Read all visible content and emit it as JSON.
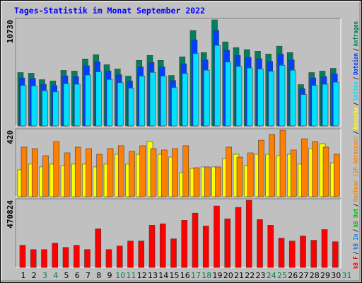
{
  "chart_data": [
    {
      "type": "bar",
      "title": "Tages-Statistik im Monat September 2022",
      "title_color": "#0000ff",
      "ylim": [
        0,
        10730
      ],
      "yticks": [
        10730
      ],
      "series": [
        {
          "color": "#00805c",
          "values": [
            5400,
            5330,
            4680,
            4540,
            5620,
            5550,
            6770,
            7200,
            6190,
            5760,
            5040,
            6630,
            7130,
            6630,
            5110,
            6990,
            9650,
            7420,
            10730,
            8500,
            7920,
            7710,
            7560,
            7270,
            8070,
            7420,
            4180,
            5400,
            5550,
            5830,
            null
          ]
        },
        {
          "color": "#0040ff",
          "values": [
            4860,
            4800,
            4210,
            4090,
            5060,
            5000,
            6090,
            6480,
            5570,
            5180,
            4540,
            5970,
            6420,
            5970,
            4600,
            6290,
            8690,
            6680,
            9660,
            7650,
            7130,
            6940,
            6800,
            6540,
            7260,
            6680,
            3760,
            4860,
            5000,
            5250,
            null
          ]
        },
        {
          "color": "#00e0ff",
          "values": [
            4100,
            4050,
            3560,
            3450,
            4270,
            4220,
            5150,
            5470,
            4700,
            4380,
            3830,
            5040,
            5420,
            5040,
            3880,
            5310,
            7330,
            5640,
            8150,
            6460,
            6020,
            5860,
            5750,
            5530,
            6130,
            5640,
            3180,
            4100,
            4220,
            4430,
            null
          ]
        }
      ]
    },
    {
      "type": "bar",
      "ylim": [
        0,
        420
      ],
      "yticks": [
        420
      ],
      "series": [
        {
          "color": "#ffff00",
          "values": [
            170,
            206,
            188,
            206,
            197,
            206,
            206,
            188,
            206,
            268,
            206,
            268,
            348,
            268,
            250,
            152,
            179,
            188,
            188,
            241,
            268,
            197,
            268,
            268,
            259,
            268,
            206,
            304,
            335,
            214,
            null
          ]
        },
        {
          "color": "#ff8000",
          "values": [
            313,
            304,
            259,
            348,
            277,
            313,
            304,
            268,
            304,
            322,
            286,
            322,
            304,
            295,
            304,
            322,
            183,
            188,
            188,
            313,
            250,
            277,
            357,
            393,
            420,
            295,
            366,
            348,
            313,
            268,
            null
          ]
        }
      ]
    },
    {
      "type": "bar",
      "ylim": [
        0,
        470824
      ],
      "yticks": [
        470824
      ],
      "categories": [
        "1",
        "2",
        "3",
        "4",
        "5",
        "6",
        "7",
        "8",
        "9",
        "10",
        "11",
        "12",
        "13",
        "14",
        "15",
        "16",
        "17",
        "18",
        "19",
        "20",
        "21",
        "22",
        "23",
        "24",
        "25",
        "26",
        "27",
        "28",
        "29",
        "30",
        "31"
      ],
      "weekend_color": "#008040",
      "weekends": [
        2,
        3,
        9,
        10,
        16,
        17,
        23,
        24,
        30
      ],
      "series": [
        {
          "color": "#ff0000",
          "values": [
            155270,
            125220,
            125220,
            170300,
            140250,
            155270,
            125220,
            270480,
            125220,
            150260,
            185330,
            185330,
            295520,
            305540,
            200350,
            330580,
            380670,
            290510,
            430760,
            340600,
            420740,
            470824,
            335590,
            295520,
            205360,
            185330,
            220390,
            190330,
            265470,
            180320,
            null
          ]
        }
      ]
    }
  ],
  "legend_separator": "/",
  "legend": [
    {
      "name": "kB F",
      "color": "#ff0000"
    },
    {
      "name": "kB In",
      "color": "#0080ff"
    },
    {
      "name": "kB Out",
      "color": "#00c000"
    },
    {
      "name": "Rechner (IP-Adressen)",
      "color": "#ff8000"
    },
    {
      "name": "Besuche",
      "color": "#ffff00"
    },
    {
      "name": "Seiten",
      "color": "#00e0ff"
    },
    {
      "name": "Dateien",
      "color": "#0040ff"
    },
    {
      "name": "Anfragen",
      "color": "#00805c"
    }
  ]
}
